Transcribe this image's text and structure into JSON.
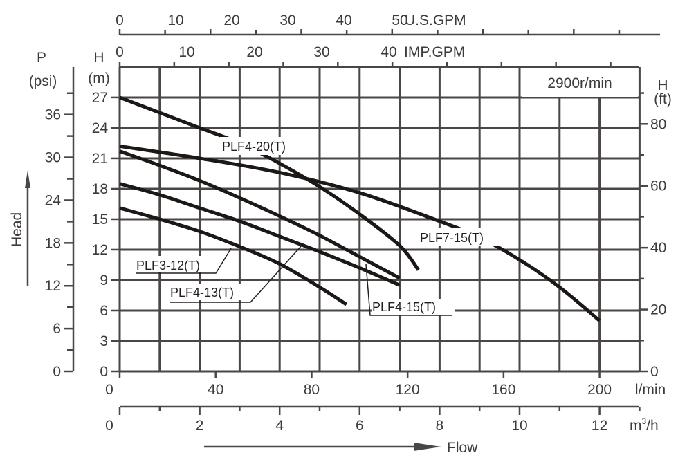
{
  "chart_data": {
    "type": "line",
    "title": "",
    "annotation": "2900r/min",
    "xlabel": "Flow",
    "ylabel": "Head",
    "x_unit_primary": "m3/h",
    "xlim": [
      0,
      13
    ],
    "ylim": [
      0,
      30
    ],
    "grid": true,
    "series": [
      {
        "name": "PLF4-20(T)",
        "x": [
          0,
          1,
          2,
          3,
          4,
          5,
          6,
          7,
          7.47
        ],
        "y": [
          27,
          25.5,
          24,
          22.5,
          20.5,
          18.2,
          15.5,
          12.4,
          10
        ]
      },
      {
        "name": "PLF7-15(T)",
        "x": [
          0,
          2,
          4,
          6,
          8,
          9,
          10,
          11,
          12
        ],
        "y": [
          22.2,
          21,
          19.6,
          17.6,
          14.8,
          13.2,
          11,
          8.3,
          5
        ]
      },
      {
        "name": "PLF4-15(T)",
        "x": [
          0,
          1,
          2,
          3,
          4,
          5,
          6,
          7
        ],
        "y": [
          21.7,
          20.3,
          18.8,
          17.1,
          15.3,
          13.4,
          11.3,
          9.2
        ]
      },
      {
        "name": "PLF4-13(T)",
        "x": [
          0,
          1,
          2,
          3,
          4,
          5,
          6,
          7
        ],
        "y": [
          18.5,
          17.4,
          16.1,
          14.8,
          13.3,
          11.8,
          10.2,
          8.5
        ]
      },
      {
        "name": "PLF3-12(T)",
        "x": [
          0,
          1,
          2,
          3,
          4,
          5,
          5.67
        ],
        "y": [
          16.1,
          15,
          13.8,
          12.3,
          10.6,
          8.3,
          6.6
        ]
      }
    ],
    "axes": {
      "us_gpm": {
        "unit": "U.S.GPM",
        "ticks": [
          "0",
          "10",
          "20",
          "30",
          "40",
          "50"
        ],
        "values": [
          0,
          10,
          20,
          30,
          40,
          50
        ]
      },
      "imp_gpm": {
        "unit": "IMP.GPM",
        "ticks": [
          "0",
          "10",
          "20",
          "30",
          "40"
        ],
        "values": [
          0,
          10,
          20,
          30,
          40
        ]
      },
      "l_min": {
        "unit": "l/min",
        "ticks": [
          "0",
          "40",
          "80",
          "120",
          "160",
          "200"
        ],
        "values": [
          0,
          40,
          80,
          120,
          160,
          200
        ]
      },
      "m3h": {
        "unit": "m³/h",
        "ticks": [
          "0",
          "2",
          "4",
          "6",
          "8",
          "10",
          "12"
        ],
        "values": [
          0,
          2,
          4,
          6,
          8,
          10,
          12
        ]
      },
      "h_m": {
        "title": "H",
        "unit": "(m)",
        "ticks": [
          "0",
          "3",
          "6",
          "9",
          "12",
          "15",
          "18",
          "21",
          "24",
          "27"
        ],
        "values": [
          0,
          3,
          6,
          9,
          12,
          15,
          18,
          21,
          24,
          27
        ]
      },
      "p_psi": {
        "title": "P",
        "unit": "(psi)",
        "ticks": [
          "0",
          "6",
          "12",
          "18",
          "24",
          "30",
          "36"
        ],
        "values": [
          0,
          6,
          12,
          18,
          24,
          30,
          36
        ]
      },
      "h_ft": {
        "title": "H",
        "unit": "(ft)",
        "ticks": [
          "0",
          "20",
          "40",
          "60",
          "80"
        ],
        "values": [
          0,
          20,
          40,
          60,
          80
        ]
      }
    }
  },
  "labels": {
    "speed": "2900r/min",
    "flow": "Flow",
    "head": "Head",
    "us_gpm_unit": "U.S.GPM",
    "imp_gpm_unit": "IMP.GPM",
    "l_min_unit": "l/min",
    "m3h_unit_m": "m",
    "m3h_unit_sup": "3",
    "m3h_unit_h": "/h",
    "p_title": "P",
    "p_unit": "(psi)",
    "hm_title": "H",
    "hm_unit": "(m)",
    "hft_title": "H",
    "hft_unit": "(ft)",
    "curves": {
      "plf4_20": "PLF4-20(T)",
      "plf7_15": "PLF7-15(T)",
      "plf4_15": "PLF4-15(T)",
      "plf4_13": "PLF4-13(T)",
      "plf3_12": "PLF3-12(T)"
    }
  },
  "colors": {
    "grid": "#4a4646",
    "curve": "#1c1816",
    "text": "#3f3b3a"
  }
}
